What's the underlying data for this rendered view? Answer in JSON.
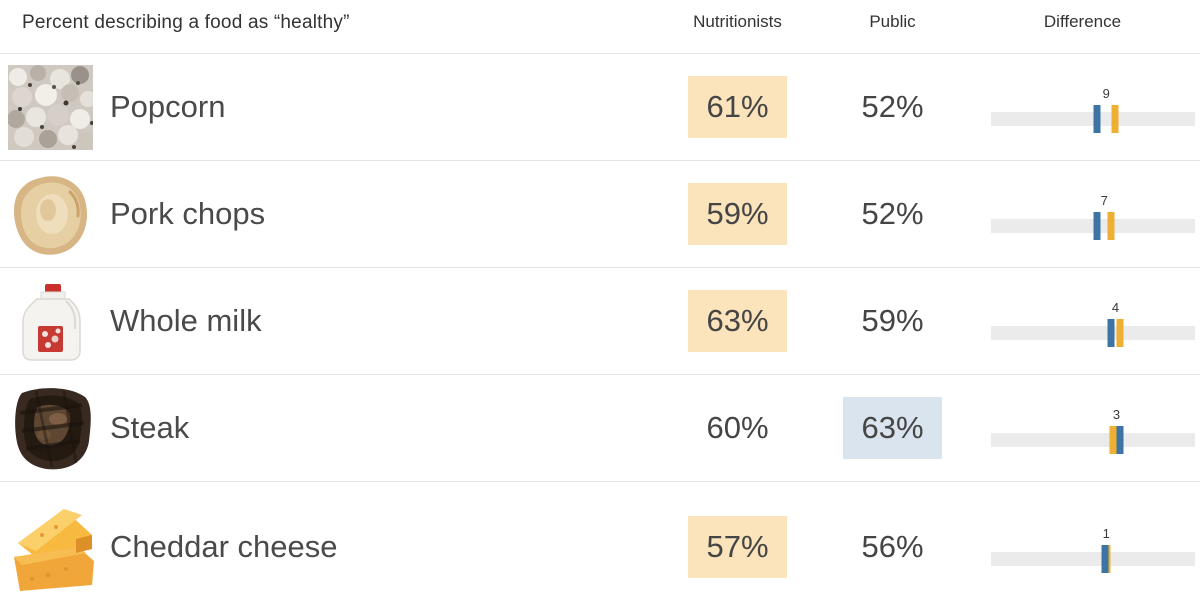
{
  "title": "Percent describing a food as “healthy”",
  "columns": {
    "nutritionists": "Nutritionists",
    "public": "Public",
    "difference": "Difference"
  },
  "rows": [
    {
      "label": "Popcorn",
      "image": "popcorn-photo",
      "nutritionists": "61%",
      "public": "52%",
      "difference": "9",
      "nutritionists_value": 61,
      "public_value": 52,
      "highlight": "nutritionists"
    },
    {
      "label": "Pork chops",
      "image": "pork-chop-photo",
      "nutritionists": "59%",
      "public": "52%",
      "difference": "7",
      "nutritionists_value": 59,
      "public_value": 52,
      "highlight": "nutritionists"
    },
    {
      "label": "Whole milk",
      "image": "whole-milk-photo",
      "nutritionists": "63%",
      "public": "59%",
      "difference": "4",
      "nutritionists_value": 63,
      "public_value": 59,
      "highlight": "nutritionists"
    },
    {
      "label": "Steak",
      "image": "steak-photo",
      "nutritionists": "60%",
      "public": "63%",
      "difference": "3",
      "nutritionists_value": 60,
      "public_value": 63,
      "highlight": "public"
    },
    {
      "label": "Cheddar cheese",
      "image": "cheddar-cheese-photo",
      "nutritionists": "57%",
      "public": "56%",
      "difference": "1",
      "nutritionists_value": 57,
      "public_value": 56,
      "highlight": "nutritionists"
    }
  ],
  "colors": {
    "nutritionists_highlight": "#fbe3bb",
    "public_highlight": "#d9e4ee",
    "nutritionists_tick": "#efaf33",
    "public_tick": "#3e74a3",
    "bar_track": "#ebebeb"
  },
  "chart_data": {
    "type": "table",
    "title": "Percent describing a food as “healthy”",
    "columns": [
      "Nutritionists",
      "Public",
      "Difference"
    ],
    "categories": [
      "Popcorn",
      "Pork chops",
      "Whole milk",
      "Steak",
      "Cheddar cheese"
    ],
    "series": [
      {
        "name": "Nutritionists",
        "values": [
          61,
          59,
          63,
          60,
          57
        ],
        "color": "#efaf33"
      },
      {
        "name": "Public",
        "values": [
          52,
          52,
          59,
          63,
          56
        ],
        "color": "#3e74a3"
      }
    ],
    "difference": [
      9,
      7,
      4,
      3,
      1
    ],
    "axis_range": [
      0,
      100
    ],
    "notes": "Each row highlights the higher group: orange box = nutritionists higher, blue box = public higher. Difference column plots both values as ticks on a 0-100 gray track with the gap labeled."
  }
}
